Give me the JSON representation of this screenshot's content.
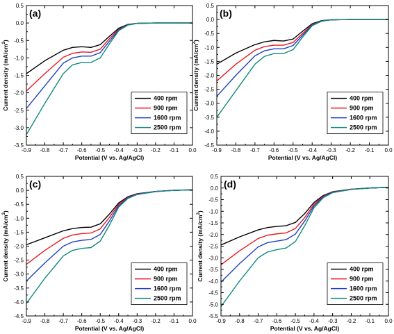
{
  "figure": {
    "panels": [
      "(a)",
      "(b)",
      "(c)",
      "(d)"
    ]
  },
  "chart_data": [
    {
      "type": "line",
      "panel_label": "(a)",
      "xlabel": "Potential (V vs. Ag/AgCl)",
      "ylabel_main": "Current density (mA/cm",
      "ylabel_sup": "2",
      "ylabel_tail": ")",
      "xlim": [
        -0.9,
        0.0
      ],
      "ylim": [
        -3.5,
        0.5
      ],
      "xticks": [
        -0.9,
        -0.8,
        -0.7,
        -0.6,
        -0.5,
        -0.4,
        -0.3,
        -0.2,
        -0.1,
        0.0
      ],
      "yticks": [
        -3.5,
        -3.0,
        -2.5,
        -2.0,
        -1.5,
        -1.0,
        -0.5,
        0.0,
        0.5
      ],
      "legend": "right",
      "x": [
        -0.9,
        -0.8,
        -0.7,
        -0.65,
        -0.6,
        -0.55,
        -0.5,
        -0.45,
        -0.4,
        -0.35,
        -0.3,
        -0.2,
        -0.1,
        0.0
      ],
      "series": [
        {
          "name": "400 rpm",
          "color": "#000000",
          "values": [
            -1.45,
            -1.08,
            -0.78,
            -0.7,
            -0.68,
            -0.7,
            -0.62,
            -0.38,
            -0.15,
            -0.04,
            -0.01,
            0.0,
            0.0,
            0.0
          ]
        },
        {
          "name": "900 rpm",
          "color": "#e8191f",
          "values": [
            -1.95,
            -1.45,
            -0.98,
            -0.87,
            -0.83,
            -0.84,
            -0.75,
            -0.45,
            -0.18,
            -0.05,
            -0.01,
            0.0,
            0.0,
            0.0
          ]
        },
        {
          "name": "1600 rpm",
          "color": "#1c3fc4",
          "values": [
            -2.45,
            -1.8,
            -1.15,
            -1.0,
            -0.95,
            -0.95,
            -0.85,
            -0.52,
            -0.2,
            -0.05,
            -0.01,
            0.0,
            0.0,
            0.0
          ]
        },
        {
          "name": "2500 rpm",
          "color": "#0b8a78",
          "values": [
            -3.2,
            -2.3,
            -1.45,
            -1.2,
            -1.13,
            -1.13,
            -1.0,
            -0.6,
            -0.22,
            -0.06,
            -0.01,
            0.0,
            0.0,
            0.0
          ]
        }
      ]
    },
    {
      "type": "line",
      "panel_label": "(b)",
      "xlabel": "Potential (V vs. Ag/AgCl)",
      "ylabel_main": "Current density (mA/cm",
      "ylabel_sup": "2",
      "ylabel_tail": ")",
      "xlim": [
        -0.9,
        0.0
      ],
      "ylim": [
        -4.5,
        0.5
      ],
      "xticks": [
        -0.9,
        -0.8,
        -0.7,
        -0.6,
        -0.5,
        -0.4,
        -0.3,
        -0.2,
        -0.1,
        0.0
      ],
      "yticks": [
        -4.5,
        -4.0,
        -3.5,
        -3.0,
        -2.5,
        -2.0,
        -1.5,
        -1.0,
        -0.5,
        0.0,
        0.5
      ],
      "legend": "right",
      "x": [
        -0.9,
        -0.8,
        -0.7,
        -0.65,
        -0.6,
        -0.55,
        -0.5,
        -0.45,
        -0.4,
        -0.35,
        -0.3,
        -0.2,
        -0.1,
        0.0
      ],
      "series": [
        {
          "name": "400 rpm",
          "color": "#000000",
          "values": [
            -1.6,
            -1.2,
            -0.9,
            -0.8,
            -0.75,
            -0.77,
            -0.7,
            -0.42,
            -0.15,
            -0.04,
            -0.01,
            0.0,
            0.0,
            0.0
          ]
        },
        {
          "name": "900 rpm",
          "color": "#e8191f",
          "values": [
            -2.2,
            -1.6,
            -1.1,
            -0.97,
            -0.92,
            -0.92,
            -0.82,
            -0.5,
            -0.18,
            -0.05,
            -0.01,
            0.0,
            0.0,
            0.0
          ]
        },
        {
          "name": "1600 rpm",
          "color": "#1c3fc4",
          "values": [
            -2.75,
            -2.0,
            -1.3,
            -1.12,
            -1.05,
            -1.05,
            -0.93,
            -0.56,
            -0.2,
            -0.05,
            -0.01,
            0.0,
            0.0,
            0.0
          ]
        },
        {
          "name": "2500 rpm",
          "color": "#0b8a78",
          "values": [
            -3.5,
            -2.55,
            -1.6,
            -1.32,
            -1.22,
            -1.22,
            -1.08,
            -0.63,
            -0.22,
            -0.06,
            -0.01,
            0.0,
            0.0,
            0.0
          ]
        }
      ]
    },
    {
      "type": "line",
      "panel_label": "(c)",
      "xlabel": "Potential (V vs. Ag/AgCl)",
      "ylabel_main": "Current density (mA/cm",
      "ylabel_sup": "2",
      "ylabel_tail": ")",
      "xlim": [
        -0.9,
        0.0
      ],
      "ylim": [
        -4.5,
        0.5
      ],
      "xticks": [
        -0.9,
        -0.8,
        -0.7,
        -0.6,
        -0.5,
        -0.4,
        -0.3,
        -0.2,
        -0.1,
        0.0
      ],
      "yticks": [
        -4.5,
        -4.0,
        -3.5,
        -3.0,
        -2.5,
        -2.0,
        -1.5,
        -1.0,
        -0.5,
        0.0,
        0.5
      ],
      "legend": "right",
      "x": [
        -0.9,
        -0.8,
        -0.7,
        -0.65,
        -0.6,
        -0.55,
        -0.5,
        -0.45,
        -0.4,
        -0.35,
        -0.3,
        -0.2,
        -0.1,
        0.0
      ],
      "series": [
        {
          "name": "400 rpm",
          "color": "#000000",
          "values": [
            -1.95,
            -1.7,
            -1.45,
            -1.37,
            -1.33,
            -1.32,
            -1.2,
            -0.85,
            -0.45,
            -0.23,
            -0.12,
            -0.04,
            0.0,
            0.02
          ]
        },
        {
          "name": "900 rpm",
          "color": "#e8191f",
          "values": [
            -2.65,
            -2.15,
            -1.72,
            -1.6,
            -1.55,
            -1.53,
            -1.38,
            -0.97,
            -0.5,
            -0.25,
            -0.13,
            -0.04,
            0.0,
            0.02
          ]
        },
        {
          "name": "1600 rpm",
          "color": "#1c3fc4",
          "values": [
            -3.25,
            -2.6,
            -2.0,
            -1.85,
            -1.79,
            -1.76,
            -1.58,
            -1.1,
            -0.55,
            -0.27,
            -0.14,
            -0.04,
            0.0,
            0.02
          ]
        },
        {
          "name": "2500 rpm",
          "color": "#0b8a78",
          "values": [
            -4.05,
            -3.15,
            -2.35,
            -2.15,
            -2.08,
            -2.05,
            -1.82,
            -1.25,
            -0.6,
            -0.29,
            -0.15,
            -0.05,
            0.0,
            0.02
          ]
        }
      ]
    },
    {
      "type": "line",
      "panel_label": "(d)",
      "xlabel": "Potential (V vs. Ag/AgCl)",
      "ylabel_main": "Current density (mA/cm",
      "ylabel_sup": "2",
      "ylabel_tail": ")",
      "xlim": [
        -0.9,
        0.0
      ],
      "ylim": [
        -5.5,
        0.5
      ],
      "xticks": [
        -0.9,
        -0.8,
        -0.7,
        -0.6,
        -0.5,
        -0.4,
        -0.3,
        -0.2,
        -0.1,
        0.0
      ],
      "yticks": [
        -5.5,
        -5.0,
        -4.5,
        -4.0,
        -3.5,
        -3.0,
        -2.5,
        -2.0,
        -1.5,
        -1.0,
        -0.5,
        0.0,
        0.5
      ],
      "legend": "right",
      "x": [
        -0.9,
        -0.8,
        -0.7,
        -0.65,
        -0.6,
        -0.55,
        -0.5,
        -0.45,
        -0.4,
        -0.35,
        -0.3,
        -0.2,
        -0.1,
        0.0
      ],
      "series": [
        {
          "name": "400 rpm",
          "color": "#000000",
          "values": [
            -2.45,
            -2.1,
            -1.8,
            -1.7,
            -1.65,
            -1.62,
            -1.48,
            -1.1,
            -0.62,
            -0.32,
            -0.16,
            -0.05,
            0.0,
            0.03
          ]
        },
        {
          "name": "900 rpm",
          "color": "#e8191f",
          "values": [
            -3.3,
            -2.7,
            -2.17,
            -2.03,
            -1.97,
            -1.93,
            -1.74,
            -1.27,
            -0.7,
            -0.35,
            -0.17,
            -0.05,
            0.0,
            0.03
          ]
        },
        {
          "name": "1600 rpm",
          "color": "#1c3fc4",
          "values": [
            -4.05,
            -3.25,
            -2.53,
            -2.35,
            -2.28,
            -2.22,
            -1.98,
            -1.42,
            -0.77,
            -0.38,
            -0.18,
            -0.06,
            0.0,
            0.03
          ]
        },
        {
          "name": "2500 rpm",
          "color": "#0b8a78",
          "values": [
            -5.1,
            -4.0,
            -3.0,
            -2.75,
            -2.65,
            -2.58,
            -2.3,
            -1.62,
            -0.85,
            -0.41,
            -0.2,
            -0.06,
            0.0,
            0.03
          ]
        }
      ]
    }
  ]
}
